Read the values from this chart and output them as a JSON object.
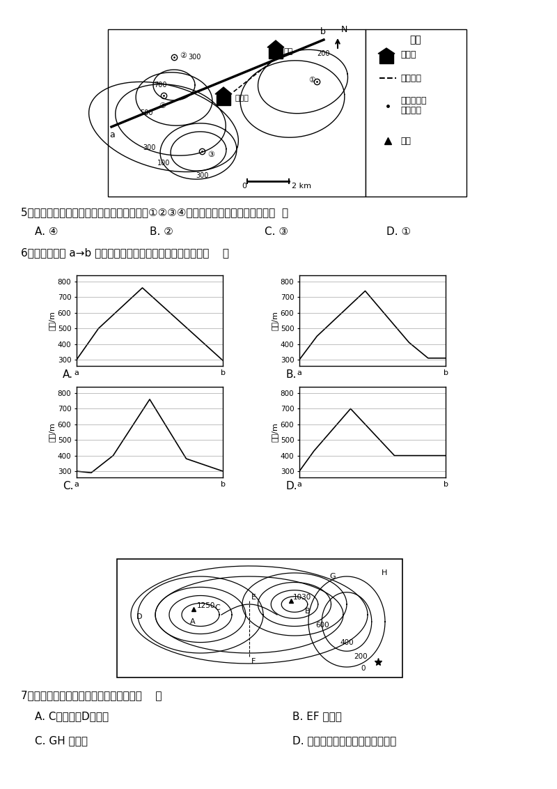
{
  "title": "",
  "bg_color": "#ffffff",
  "q5_text": "5、在图示区域内，拟建一座防火瞭望塔，在①②③④选址方案中瞭望范围最大的是（  ）",
  "q5_options": [
    "A. ④",
    "B. ②",
    "C. ③",
    "D. ①"
  ],
  "q6_text": "6、小明同学沿 a→b 剖面线绘制的地形剖面图，是下图中的（    ）",
  "q7_text": "7、读下面等高线地形图，判断正确的是（    ）",
  "q7_options_left": [
    "A. C是鞍部，D是陡崖",
    "C. GH 是山谷"
  ],
  "q7_options_right": [
    "B. EF 是山脊",
    "D. 该地山脉的走向是西北一东南向"
  ],
  "legend_items": [
    "居民点",
    "规划公路",
    "防火瞭望塔\n（选址）",
    "山峰"
  ]
}
